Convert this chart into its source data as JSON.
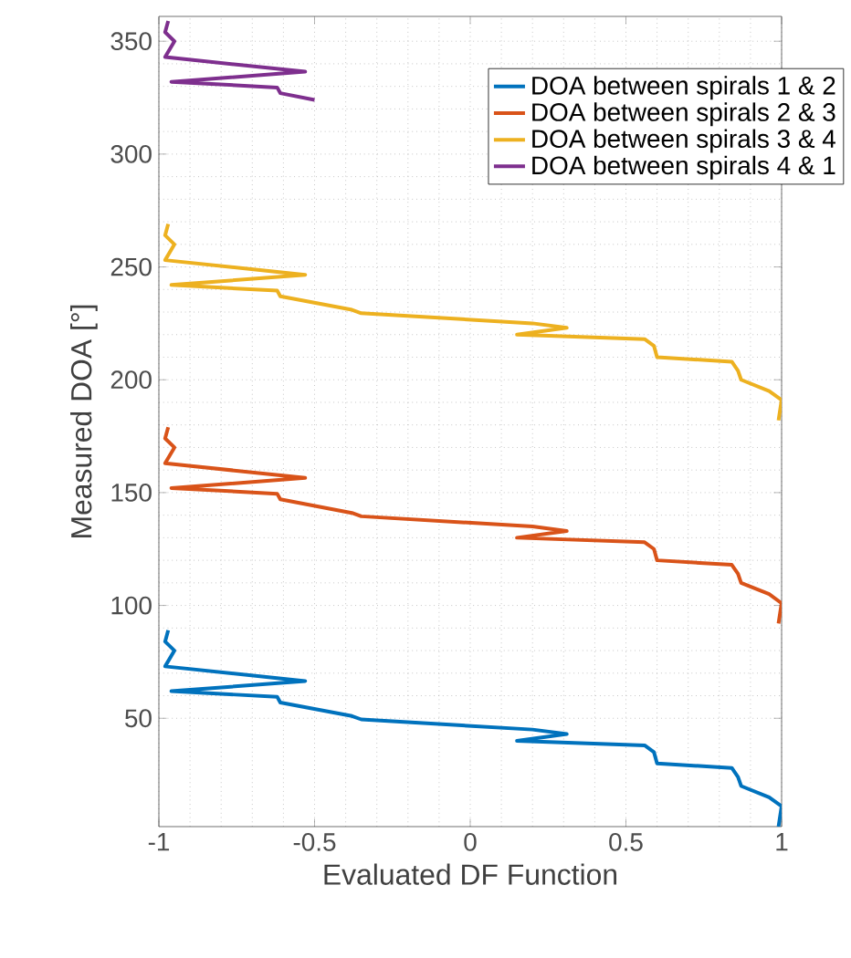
{
  "chart_data": {
    "type": "line",
    "xlabel": "Evaluated DF Function",
    "ylabel": "Measured DOA [°]",
    "xlim": [
      -1,
      1
    ],
    "ylim": [
      2,
      361
    ],
    "xticks": [
      -1,
      -0.5,
      0,
      0.5,
      1
    ],
    "yticks": [
      50,
      100,
      150,
      200,
      250,
      300,
      350
    ],
    "grid": true,
    "legend": "top right",
    "line_style": "solid",
    "marker": "none",
    "series": [
      {
        "name": "DOA between spirals 1 & 2",
        "color": "#0072bd",
        "x": [
          0.99,
          1.0,
          0.96,
          0.87,
          0.86,
          0.84,
          0.6,
          0.59,
          0.56,
          0.15,
          0.31,
          0.2,
          -0.35,
          -0.38,
          -0.61,
          -0.62,
          -0.96,
          -0.53,
          -0.98,
          -0.95,
          -0.98,
          -0.97
        ],
        "values": [
          2,
          11,
          15,
          20,
          24,
          28,
          30,
          35,
          38,
          40,
          43,
          45,
          49.5,
          51,
          57,
          59.5,
          62,
          66.5,
          73,
          80,
          84,
          89
        ]
      },
      {
        "name": "DOA between spirals 2 & 3",
        "color": "#d95319",
        "x": [
          0.99,
          1.0,
          0.96,
          0.87,
          0.86,
          0.84,
          0.6,
          0.59,
          0.56,
          0.15,
          0.31,
          0.2,
          -0.35,
          -0.38,
          -0.61,
          -0.62,
          -0.96,
          -0.53,
          -0.98,
          -0.95,
          -0.98,
          -0.97
        ],
        "values": [
          92,
          101,
          105,
          110,
          114,
          118,
          120,
          125,
          128,
          130,
          133,
          135,
          139.5,
          141,
          147,
          149.5,
          152,
          156.5,
          163,
          170,
          174,
          179
        ]
      },
      {
        "name": "DOA between spirals 3 & 4",
        "color": "#edb120",
        "x": [
          0.99,
          1.0,
          0.96,
          0.87,
          0.86,
          0.84,
          0.6,
          0.59,
          0.56,
          0.15,
          0.31,
          0.2,
          -0.35,
          -0.38,
          -0.61,
          -0.62,
          -0.96,
          -0.53,
          -0.98,
          -0.95,
          -0.98,
          -0.97
        ],
        "values": [
          182,
          191,
          195,
          200,
          204,
          208,
          210,
          215,
          218,
          220,
          223,
          225,
          229.5,
          231,
          237,
          239.5,
          242,
          246.5,
          253,
          260,
          264,
          269
        ]
      },
      {
        "name": "DOA between spirals 4 & 1",
        "color": "#7e2f8e",
        "x": [
          -0.5,
          -0.61,
          -0.62,
          -0.96,
          -0.53,
          -0.98,
          -0.95,
          -0.98,
          -0.97
        ],
        "values": [
          324,
          327,
          329.5,
          332,
          336.5,
          343,
          350,
          354,
          359
        ]
      }
    ]
  }
}
